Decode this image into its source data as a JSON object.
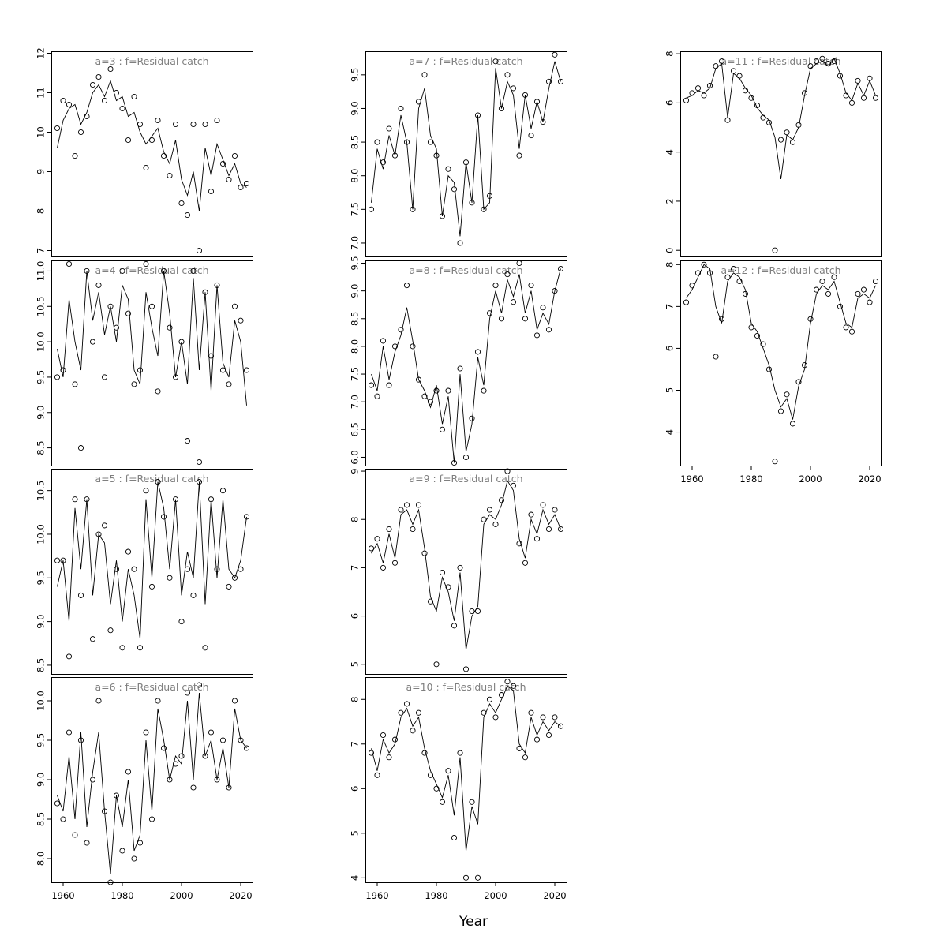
{
  "xlabel": "Year",
  "chart_data": {
    "type": "scatter",
    "title": "",
    "xlabel": "Year",
    "ylabel": "",
    "grid": false,
    "legend": "none",
    "title_color": "#7f7f7f",
    "point_color": "#000000",
    "line_color": "#000000",
    "xlim": [
      1956,
      2024
    ],
    "xticks": [
      1960,
      1980,
      2000,
      2020
    ],
    "xtick_labels": [
      "1960",
      "1980",
      "2000",
      "2020"
    ],
    "x": [
      1958,
      1960,
      1962,
      1964,
      1966,
      1968,
      1970,
      1972,
      1974,
      1976,
      1978,
      1980,
      1982,
      1984,
      1986,
      1988,
      1990,
      1992,
      1994,
      1996,
      1998,
      2000,
      2002,
      2004,
      2006,
      2008,
      2010,
      2012,
      2014,
      2016,
      2018,
      2020,
      2022
    ],
    "panels": [
      {
        "a": 3,
        "title": "a=3  :  f=Residual catch",
        "col": 0,
        "row": 0,
        "show_x": false,
        "ylim": [
          6.85,
          12.05
        ],
        "yticks": [
          7,
          8,
          9,
          10,
          11,
          12
        ],
        "ytick_labels": [
          "7",
          "8",
          "9",
          "10",
          "11",
          "12"
        ],
        "line": [
          9.6,
          10.3,
          10.6,
          10.7,
          10.2,
          10.5,
          11.0,
          11.2,
          10.9,
          11.3,
          10.8,
          10.9,
          10.4,
          10.5,
          10.0,
          9.7,
          9.9,
          10.1,
          9.5,
          9.2,
          9.8,
          8.8,
          8.4,
          9.0,
          8.0,
          9.6,
          8.9,
          9.7,
          9.3,
          8.9,
          9.2,
          8.7,
          8.6
        ],
        "points": [
          10.1,
          10.8,
          10.7,
          9.4,
          10.0,
          10.4,
          11.2,
          11.4,
          10.8,
          11.6,
          11.0,
          10.6,
          9.8,
          10.9,
          10.2,
          9.1,
          9.8,
          10.3,
          9.4,
          8.9,
          10.2,
          8.2,
          7.9,
          10.2,
          7.0,
          10.2,
          8.5,
          10.3,
          9.2,
          8.8,
          9.4,
          8.6,
          8.7
        ]
      },
      {
        "a": 4,
        "title": "a=4  :  f=Residual catch",
        "col": 0,
        "row": 1,
        "show_x": false,
        "ylim": [
          8.25,
          11.15
        ],
        "yticks": [
          8.5,
          9.0,
          9.5,
          10.0,
          10.5,
          11.0
        ],
        "ytick_labels": [
          "8.5",
          "9.0",
          "9.5",
          "10.0",
          "10.5",
          "11.0"
        ],
        "line": [
          9.9,
          9.5,
          10.6,
          10.0,
          9.6,
          11.0,
          10.3,
          10.7,
          10.1,
          10.5,
          10.0,
          10.8,
          10.6,
          9.6,
          9.4,
          10.7,
          10.2,
          9.8,
          11.0,
          10.4,
          9.5,
          10.0,
          9.4,
          10.9,
          9.6,
          10.7,
          9.3,
          10.8,
          9.7,
          9.5,
          10.3,
          10.0,
          9.1
        ],
        "points": [
          9.5,
          9.6,
          11.1,
          9.4,
          8.5,
          11.0,
          10.0,
          10.8,
          9.5,
          10.5,
          10.2,
          11.0,
          10.4,
          9.4,
          9.6,
          11.1,
          10.5,
          9.3,
          11.0,
          10.2,
          9.5,
          10.0,
          8.6,
          11.0,
          8.3,
          10.7,
          9.8,
          10.8,
          9.6,
          9.4,
          10.5,
          10.3,
          9.6
        ]
      },
      {
        "a": 5,
        "title": "a=5  :  f=Residual catch",
        "col": 0,
        "row": 2,
        "show_x": false,
        "ylim": [
          8.4,
          10.75
        ],
        "yticks": [
          8.5,
          9.0,
          9.5,
          10.0,
          10.5
        ],
        "ytick_labels": [
          "8.5",
          "9.0",
          "9.5",
          "10.0",
          "10.5"
        ],
        "line": [
          9.4,
          9.7,
          9.0,
          10.3,
          9.6,
          10.4,
          9.3,
          10.0,
          9.9,
          9.2,
          9.7,
          9.0,
          9.6,
          9.3,
          8.8,
          10.4,
          9.5,
          10.6,
          10.3,
          9.6,
          10.4,
          9.3,
          9.8,
          9.5,
          10.6,
          9.2,
          10.4,
          9.5,
          10.4,
          9.6,
          9.5,
          9.7,
          10.2
        ],
        "points": [
          9.7,
          9.7,
          8.6,
          10.4,
          9.3,
          10.4,
          8.8,
          10.0,
          10.1,
          8.9,
          9.6,
          8.7,
          9.8,
          9.6,
          8.7,
          10.5,
          9.4,
          10.6,
          10.2,
          9.5,
          10.4,
          9.0,
          9.6,
          9.3,
          10.6,
          8.7,
          10.4,
          9.6,
          10.5,
          9.4,
          9.5,
          9.6,
          10.2
        ]
      },
      {
        "a": 6,
        "title": "a=6  :  f=Residual catch",
        "col": 0,
        "row": 3,
        "show_x": true,
        "ylim": [
          7.7,
          10.3
        ],
        "yticks": [
          8.0,
          8.5,
          9.0,
          9.5,
          10.0
        ],
        "ytick_labels": [
          "8.0",
          "8.5",
          "9.0",
          "9.5",
          "10.0"
        ],
        "line": [
          8.8,
          8.6,
          9.3,
          8.5,
          9.6,
          8.4,
          9.1,
          9.6,
          8.6,
          7.8,
          8.8,
          8.4,
          9.0,
          8.1,
          8.3,
          9.5,
          8.6,
          9.9,
          9.5,
          9.0,
          9.3,
          9.2,
          10.0,
          9.0,
          10.1,
          9.3,
          9.5,
          9.0,
          9.4,
          8.9,
          9.9,
          9.5,
          9.4
        ],
        "points": [
          8.7,
          8.5,
          9.6,
          8.3,
          9.5,
          8.2,
          9.0,
          10.0,
          8.6,
          7.7,
          8.8,
          8.1,
          9.1,
          8.0,
          8.2,
          9.6,
          8.5,
          10.0,
          9.4,
          9.0,
          9.2,
          9.3,
          10.1,
          8.9,
          10.2,
          9.3,
          9.6,
          9.0,
          9.5,
          8.9,
          10.0,
          9.5,
          9.4
        ]
      },
      {
        "a": 7,
        "title": "a=7  :  f=Residual catch",
        "col": 1,
        "row": 0,
        "show_x": false,
        "ylim": [
          6.8,
          9.85
        ],
        "yticks": [
          7.0,
          7.5,
          8.0,
          8.5,
          9.0,
          9.5
        ],
        "ytick_labels": [
          "7.0",
          "7.5",
          "8.0",
          "8.5",
          "9.0",
          "9.5"
        ],
        "line": [
          7.6,
          8.4,
          8.1,
          8.6,
          8.3,
          8.9,
          8.5,
          7.5,
          9.0,
          9.3,
          8.6,
          8.4,
          7.4,
          8.0,
          7.9,
          7.1,
          8.2,
          7.6,
          8.9,
          7.5,
          7.6,
          9.6,
          9.0,
          9.4,
          9.2,
          8.4,
          9.2,
          8.7,
          9.1,
          8.8,
          9.3,
          9.7,
          9.4
        ],
        "points": [
          7.5,
          8.5,
          8.2,
          8.7,
          8.3,
          9.0,
          8.5,
          7.5,
          9.1,
          9.5,
          8.5,
          8.3,
          7.4,
          8.1,
          7.8,
          7.0,
          8.2,
          7.6,
          8.9,
          7.5,
          7.7,
          9.7,
          9.0,
          9.5,
          9.3,
          8.3,
          9.2,
          8.6,
          9.1,
          8.8,
          9.4,
          9.8,
          9.4
        ]
      },
      {
        "a": 8,
        "title": "a=8  :  f=Residual catch",
        "col": 1,
        "row": 1,
        "show_x": false,
        "ylim": [
          5.85,
          9.55
        ],
        "yticks": [
          6.0,
          6.5,
          7.0,
          7.5,
          8.0,
          8.5,
          9.0,
          9.5
        ],
        "ytick_labels": [
          "6.0",
          "6.5",
          "7.0",
          "7.5",
          "8.0",
          "8.5",
          "9.0",
          "9.5"
        ],
        "line": [
          7.5,
          7.2,
          8.0,
          7.4,
          7.9,
          8.2,
          8.7,
          8.1,
          7.4,
          7.2,
          6.9,
          7.3,
          6.6,
          7.1,
          5.9,
          7.5,
          6.1,
          6.6,
          7.8,
          7.3,
          8.5,
          9.0,
          8.6,
          9.2,
          8.9,
          9.3,
          8.6,
          9.0,
          8.3,
          8.6,
          8.4,
          9.0,
          9.4
        ],
        "points": [
          7.3,
          7.1,
          8.1,
          7.3,
          8.0,
          8.3,
          9.1,
          8.0,
          7.4,
          7.1,
          7.0,
          7.2,
          6.5,
          7.2,
          5.9,
          7.6,
          6.0,
          6.7,
          7.9,
          7.2,
          8.6,
          9.1,
          8.5,
          9.3,
          8.8,
          9.5,
          8.5,
          9.1,
          8.2,
          8.7,
          8.3,
          9.0,
          9.4
        ]
      },
      {
        "a": 9,
        "title": "a=9  :  f=Residual catch",
        "col": 1,
        "row": 2,
        "show_x": false,
        "ylim": [
          4.8,
          9.05
        ],
        "yticks": [
          5,
          6,
          7,
          8,
          9
        ],
        "ytick_labels": [
          "5",
          "6",
          "7",
          "8",
          "9"
        ],
        "line": [
          7.3,
          7.5,
          7.1,
          7.7,
          7.2,
          8.1,
          8.2,
          7.9,
          8.2,
          7.4,
          6.4,
          6.1,
          6.8,
          6.5,
          5.9,
          6.9,
          5.3,
          6.0,
          6.2,
          7.9,
          8.1,
          8.0,
          8.3,
          8.8,
          8.6,
          7.6,
          7.2,
          8.0,
          7.7,
          8.2,
          7.9,
          8.1,
          7.8
        ],
        "points": [
          7.4,
          7.6,
          7.0,
          7.8,
          7.1,
          8.2,
          8.3,
          7.8,
          8.3,
          7.3,
          6.3,
          5.0,
          6.9,
          6.6,
          5.8,
          7.0,
          4.9,
          6.1,
          6.1,
          8.0,
          8.2,
          7.9,
          8.4,
          9.0,
          8.7,
          7.5,
          7.1,
          8.1,
          7.6,
          8.3,
          7.8,
          8.2,
          7.8
        ]
      },
      {
        "a": 10,
        "title": "a=10  :  f=Residual catch",
        "col": 1,
        "row": 3,
        "show_x": true,
        "ylim": [
          3.9,
          8.5
        ],
        "yticks": [
          4,
          5,
          6,
          7,
          8
        ],
        "ytick_labels": [
          "4",
          "5",
          "6",
          "7",
          "8"
        ],
        "line": [
          6.9,
          6.4,
          7.1,
          6.8,
          7.0,
          7.6,
          7.8,
          7.4,
          7.6,
          6.9,
          6.4,
          6.1,
          5.8,
          6.3,
          5.4,
          6.7,
          4.6,
          5.6,
          5.2,
          7.6,
          7.9,
          7.7,
          8.0,
          8.3,
          8.2,
          7.0,
          6.8,
          7.6,
          7.2,
          7.5,
          7.3,
          7.5,
          7.4
        ],
        "points": [
          6.8,
          6.3,
          7.2,
          6.7,
          7.1,
          7.7,
          7.9,
          7.3,
          7.7,
          6.8,
          6.3,
          6.0,
          5.7,
          6.4,
          4.9,
          6.8,
          4.0,
          5.7,
          4.0,
          7.7,
          8.0,
          7.6,
          8.1,
          8.4,
          8.3,
          6.9,
          6.7,
          7.7,
          7.1,
          7.6,
          7.2,
          7.6,
          7.4
        ]
      },
      {
        "a": 11,
        "title": "a=11  :  f=Residual catch",
        "col": 2,
        "row": 0,
        "show_x": false,
        "ylim": [
          -0.25,
          8.1
        ],
        "yticks": [
          0,
          2,
          4,
          6,
          8
        ],
        "ytick_labels": [
          "0",
          "2",
          "4",
          "6",
          "8"
        ],
        "line": [
          6.2,
          6.3,
          6.5,
          6.4,
          6.6,
          7.4,
          7.6,
          5.4,
          7.2,
          7.0,
          6.6,
          6.3,
          5.8,
          5.5,
          5.3,
          4.6,
          2.9,
          4.7,
          4.5,
          5.0,
          6.3,
          7.4,
          7.6,
          7.7,
          7.5,
          7.8,
          7.2,
          6.4,
          6.1,
          6.8,
          6.3,
          6.9,
          6.3
        ],
        "points": [
          6.1,
          6.4,
          6.6,
          6.3,
          6.7,
          7.5,
          7.7,
          5.3,
          7.3,
          7.1,
          6.5,
          6.2,
          5.9,
          5.4,
          5.2,
          0.0,
          4.5,
          4.8,
          4.4,
          5.1,
          6.4,
          7.5,
          7.7,
          7.8,
          7.6,
          7.7,
          7.1,
          6.3,
          6.0,
          6.9,
          6.2,
          7.0,
          6.2
        ]
      },
      {
        "a": 12,
        "title": "a=12  :  f=Residual catch",
        "col": 2,
        "row": 1,
        "show_x": true,
        "ylim": [
          3.2,
          8.1
        ],
        "yticks": [
          4,
          5,
          6,
          7,
          8
        ],
        "ytick_labels": [
          "4",
          "5",
          "6",
          "7",
          "8"
        ],
        "line": [
          7.2,
          7.4,
          7.7,
          8.0,
          7.9,
          7.0,
          6.6,
          7.6,
          7.8,
          7.7,
          7.4,
          6.6,
          6.4,
          6.0,
          5.6,
          5.0,
          4.6,
          4.8,
          4.3,
          5.1,
          5.5,
          6.6,
          7.3,
          7.5,
          7.4,
          7.6,
          7.1,
          6.6,
          6.5,
          7.2,
          7.3,
          7.2,
          7.5
        ],
        "points": [
          7.1,
          7.5,
          7.8,
          8.0,
          7.8,
          5.8,
          6.7,
          7.7,
          7.9,
          7.6,
          7.3,
          6.5,
          6.3,
          6.1,
          5.5,
          3.3,
          4.5,
          4.9,
          4.2,
          5.2,
          5.6,
          6.7,
          7.4,
          7.6,
          7.3,
          7.7,
          7.0,
          6.5,
          6.4,
          7.3,
          7.4,
          7.1,
          7.6
        ]
      }
    ]
  }
}
